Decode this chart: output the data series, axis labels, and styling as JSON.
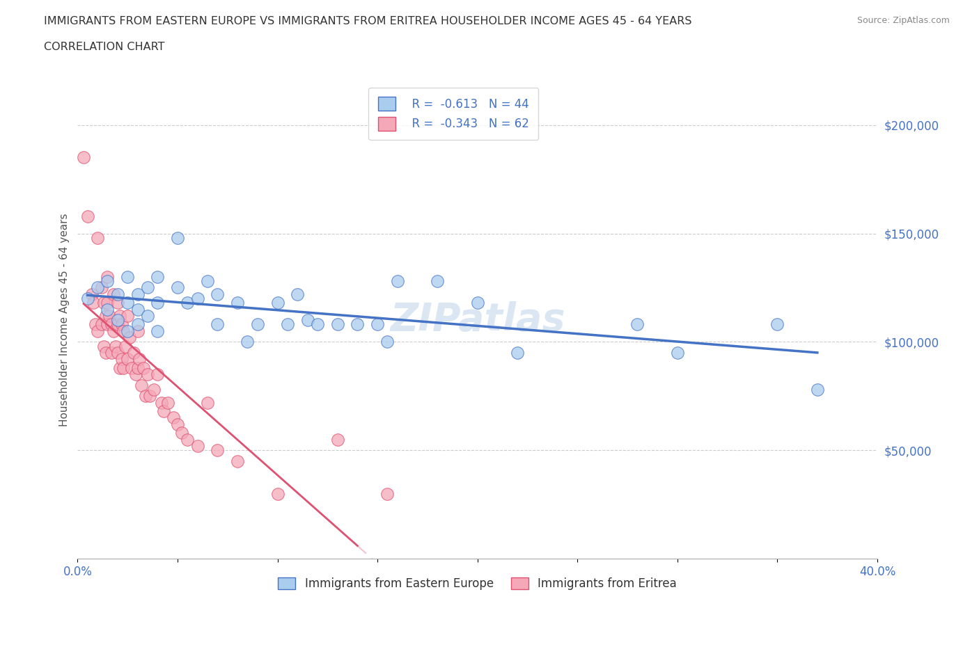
{
  "title_line1": "IMMIGRANTS FROM EASTERN EUROPE VS IMMIGRANTS FROM ERITREA HOUSEHOLDER INCOME AGES 45 - 64 YEARS",
  "title_line2": "CORRELATION CHART",
  "source_text": "Source: ZipAtlas.com",
  "ylabel": "Householder Income Ages 45 - 64 years",
  "xlim": [
    0.0,
    0.4
  ],
  "ylim": [
    0,
    220000
  ],
  "yticks": [
    0,
    50000,
    100000,
    150000,
    200000
  ],
  "ytick_labels": [
    "",
    "$50,000",
    "$100,000",
    "$150,000",
    "$200,000"
  ],
  "xticks": [
    0.0,
    0.05,
    0.1,
    0.15,
    0.2,
    0.25,
    0.3,
    0.35,
    0.4
  ],
  "xtick_labels": [
    "0.0%",
    "",
    "",
    "",
    "",
    "",
    "",
    "",
    "40.0%"
  ],
  "grid_color": "#cccccc",
  "background_color": "#ffffff",
  "watermark": "ZIPatlas",
  "legend_R1": "R =  -0.613",
  "legend_N1": "N = 44",
  "legend_R2": "R =  -0.343",
  "legend_N2": "N = 62",
  "color_eastern": "#aaccee",
  "color_eritrea": "#f4a8b8",
  "line_color_eastern": "#4472c4",
  "line_color_eritrea": "#e05070",
  "scatter_eastern_x": [
    0.005,
    0.01,
    0.015,
    0.015,
    0.02,
    0.02,
    0.025,
    0.025,
    0.025,
    0.03,
    0.03,
    0.03,
    0.035,
    0.035,
    0.04,
    0.04,
    0.04,
    0.05,
    0.05,
    0.055,
    0.06,
    0.065,
    0.07,
    0.07,
    0.08,
    0.085,
    0.09,
    0.1,
    0.105,
    0.11,
    0.115,
    0.12,
    0.13,
    0.14,
    0.15,
    0.155,
    0.16,
    0.18,
    0.2,
    0.22,
    0.28,
    0.3,
    0.35,
    0.37
  ],
  "scatter_eastern_y": [
    120000,
    125000,
    128000,
    115000,
    122000,
    110000,
    130000,
    118000,
    105000,
    122000,
    115000,
    108000,
    125000,
    112000,
    130000,
    118000,
    105000,
    148000,
    125000,
    118000,
    120000,
    128000,
    122000,
    108000,
    118000,
    100000,
    108000,
    118000,
    108000,
    122000,
    110000,
    108000,
    108000,
    108000,
    108000,
    100000,
    128000,
    128000,
    118000,
    95000,
    108000,
    95000,
    108000,
    78000
  ],
  "scatter_eritrea_x": [
    0.003,
    0.005,
    0.007,
    0.008,
    0.009,
    0.01,
    0.01,
    0.012,
    0.012,
    0.013,
    0.013,
    0.014,
    0.014,
    0.015,
    0.015,
    0.015,
    0.016,
    0.017,
    0.017,
    0.018,
    0.018,
    0.019,
    0.02,
    0.02,
    0.02,
    0.021,
    0.021,
    0.022,
    0.022,
    0.023,
    0.023,
    0.024,
    0.025,
    0.025,
    0.026,
    0.027,
    0.028,
    0.029,
    0.03,
    0.03,
    0.031,
    0.032,
    0.033,
    0.034,
    0.035,
    0.036,
    0.038,
    0.04,
    0.042,
    0.043,
    0.045,
    0.048,
    0.05,
    0.052,
    0.055,
    0.06,
    0.065,
    0.07,
    0.08,
    0.1,
    0.13,
    0.155
  ],
  "scatter_eritrea_y": [
    185000,
    158000,
    122000,
    118000,
    108000,
    148000,
    105000,
    125000,
    108000,
    118000,
    98000,
    112000,
    95000,
    130000,
    118000,
    108000,
    112000,
    108000,
    95000,
    122000,
    105000,
    98000,
    118000,
    108000,
    95000,
    112000,
    88000,
    108000,
    92000,
    105000,
    88000,
    98000,
    112000,
    92000,
    102000,
    88000,
    95000,
    85000,
    105000,
    88000,
    92000,
    80000,
    88000,
    75000,
    85000,
    75000,
    78000,
    85000,
    72000,
    68000,
    72000,
    65000,
    62000,
    58000,
    55000,
    52000,
    72000,
    50000,
    45000,
    30000,
    55000,
    30000
  ],
  "eritrea_solid_xlim": [
    0.003,
    0.14
  ],
  "eritrea_dashed_xlim": [
    0.14,
    0.38
  ]
}
